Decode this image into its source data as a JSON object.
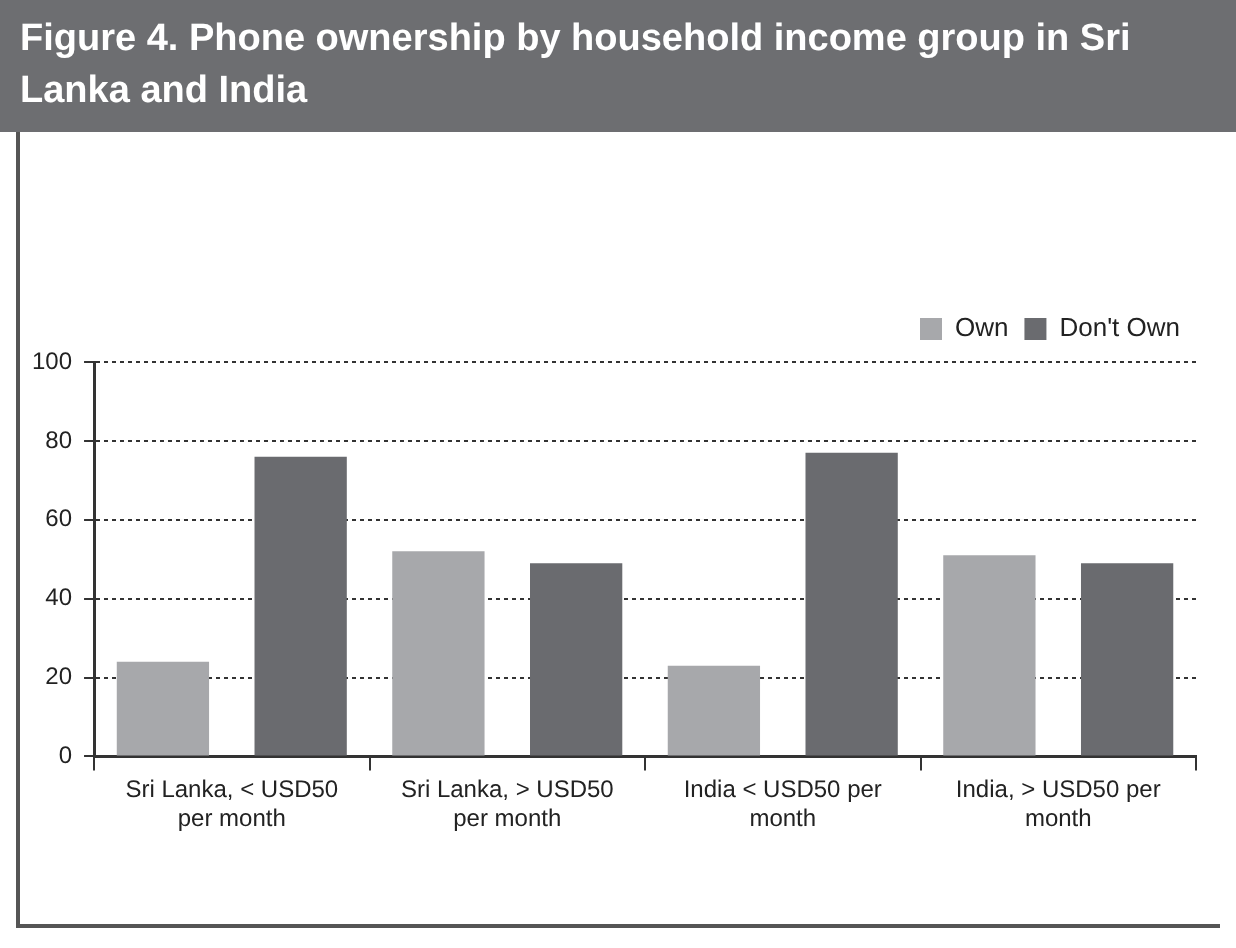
{
  "chart_data": {
    "type": "bar",
    "title": "Figure 4. Phone ownership by household income group in Sri Lanka and India",
    "categories": [
      "Sri Lanka, < USD50 per month",
      "Sri Lanka, > USD50 per month",
      "India < USD50 per month",
      "India, > USD50 per month"
    ],
    "series": [
      {
        "name": "Own",
        "color": "#a7a8ab",
        "values": [
          24,
          52,
          23,
          51
        ]
      },
      {
        "name": "Don't Own",
        "color": "#6a6b6f",
        "values": [
          76,
          49,
          77,
          49
        ]
      }
    ],
    "ylim": [
      0,
      100
    ],
    "yticks": [
      0,
      20,
      40,
      60,
      80,
      100
    ],
    "grid": "y",
    "legend": "top right"
  }
}
